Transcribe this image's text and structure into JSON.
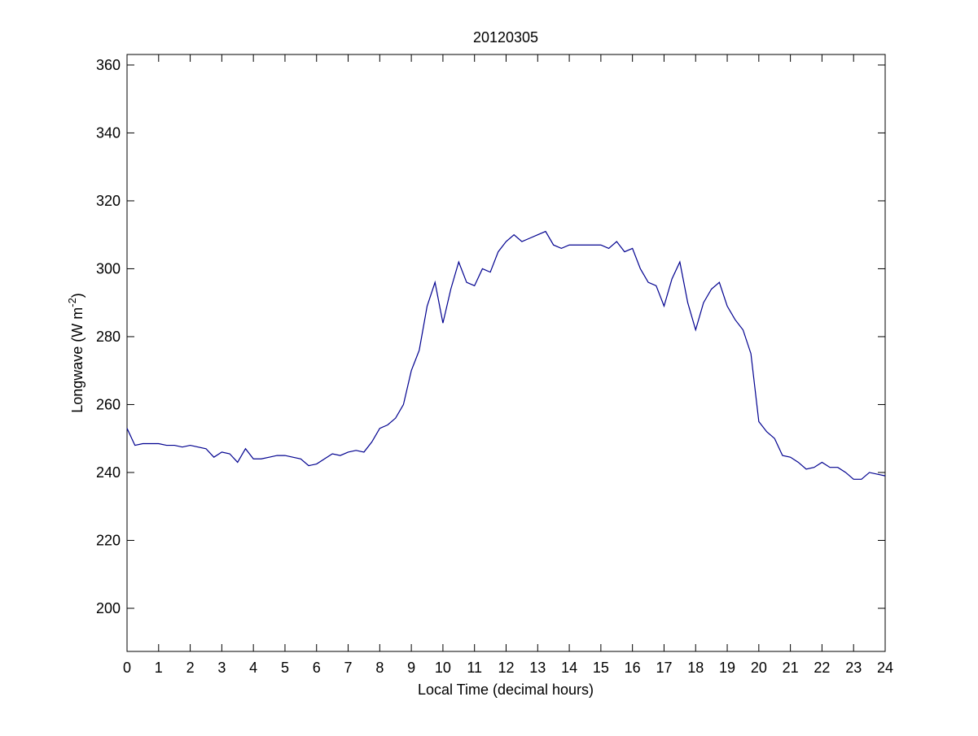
{
  "chart_data": {
    "type": "line",
    "title": "20120305",
    "xlabel": "Local Time (decimal hours)",
    "ylabel": [
      "Longwave (W m",
      "-2",
      ")"
    ],
    "x": [
      0,
      0.25,
      0.5,
      0.75,
      1,
      1.25,
      1.5,
      1.75,
      2,
      2.25,
      2.5,
      2.75,
      3,
      3.25,
      3.5,
      3.75,
      4,
      4.25,
      4.5,
      4.75,
      5,
      5.25,
      5.5,
      5.75,
      6,
      6.25,
      6.5,
      6.75,
      7,
      7.25,
      7.5,
      7.75,
      8,
      8.25,
      8.5,
      8.75,
      9,
      9.25,
      9.5,
      9.75,
      10,
      10.25,
      10.5,
      10.75,
      11,
      11.25,
      11.5,
      11.75,
      12,
      12.25,
      12.5,
      12.75,
      13,
      13.25,
      13.5,
      13.75,
      14,
      14.25,
      14.5,
      14.75,
      15,
      15.25,
      15.5,
      15.75,
      16,
      16.25,
      16.5,
      16.75,
      17,
      17.25,
      17.5,
      17.75,
      18,
      18.25,
      18.5,
      18.75,
      19,
      19.25,
      19.5,
      19.75,
      20,
      20.25,
      20.5,
      20.75,
      21,
      21.25,
      21.5,
      21.75,
      22,
      22.25,
      22.5,
      22.75,
      23,
      23.25,
      23.5,
      23.75,
      24
    ],
    "series": [
      {
        "color": "#00008f",
        "values": [
          253,
          248,
          248.5,
          248.5,
          248.5,
          248,
          248,
          247.5,
          248,
          247.5,
          247,
          244.5,
          246,
          245.5,
          243,
          247,
          244,
          244,
          244.5,
          245,
          245,
          244.5,
          244,
          242,
          242.5,
          244,
          245.5,
          245,
          246,
          246.5,
          246,
          249,
          253,
          254,
          256,
          260,
          270,
          276,
          289,
          296,
          284,
          294,
          302,
          296,
          295,
          300,
          299,
          305,
          308,
          310,
          308,
          309,
          310,
          311,
          307,
          306,
          307,
          307,
          307,
          307,
          307,
          306,
          308,
          305,
          306,
          300,
          296,
          295,
          289,
          297,
          302,
          290,
          282,
          290,
          294,
          296,
          289,
          285,
          282,
          275,
          255,
          252,
          250,
          245,
          244.5,
          243,
          241,
          241.5,
          243,
          241.5,
          241.5,
          240,
          238,
          238,
          240,
          239.5,
          239
        ]
      }
    ],
    "xlim": [
      0,
      24
    ],
    "xticks": [
      0,
      1,
      2,
      3,
      4,
      5,
      6,
      7,
      8,
      9,
      10,
      11,
      12,
      13,
      14,
      15,
      16,
      17,
      18,
      19,
      20,
      21,
      22,
      23,
      24
    ],
    "ylim": [
      187.3,
      363.1
    ],
    "yticks": [
      200,
      220,
      240,
      260,
      280,
      300,
      320,
      340,
      360
    ]
  }
}
